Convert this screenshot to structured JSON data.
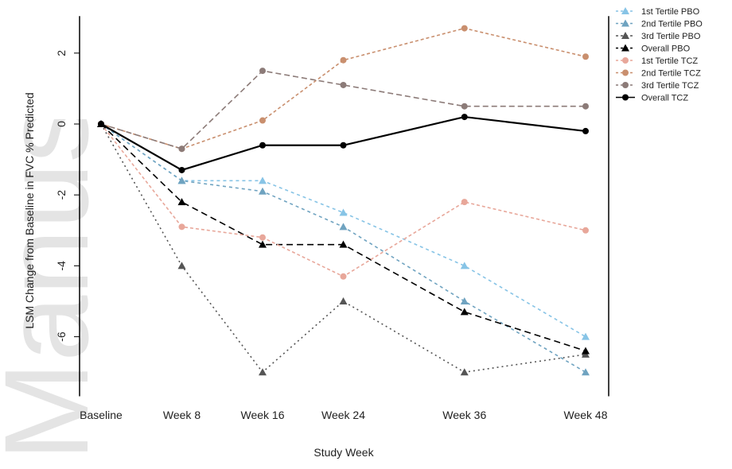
{
  "chart_data": {
    "type": "line",
    "title": "",
    "xlabel": "Study Week",
    "ylabel": "LSM Change from Baseline in FVC % Predicted",
    "categories": [
      "Baseline",
      "Week 8",
      "Week 16",
      "Week 24",
      "Week 36",
      "Week 48"
    ],
    "x_weeks": [
      0,
      8,
      16,
      24,
      36,
      48
    ],
    "yticks": [
      2,
      0,
      -2,
      -4,
      -6
    ],
    "ylim": [
      -7.5,
      3.0
    ],
    "grid": false,
    "legend_position": "right",
    "series": [
      {
        "name": "1st Tertile PBO",
        "values": [
          0,
          -1.6,
          -1.6,
          -2.5,
          -4.0,
          -6.0
        ],
        "color": "#87c4e6",
        "dash": "4 4",
        "marker": "triangle"
      },
      {
        "name": "2nd Tertile PBO",
        "values": [
          0,
          -1.6,
          -1.9,
          -2.9,
          -5.0,
          -7.0
        ],
        "color": "#6fa3c0",
        "dash": "4 4",
        "marker": "triangle"
      },
      {
        "name": "3rd Tertile PBO",
        "values": [
          0,
          -4.0,
          -7.0,
          -5.0,
          -7.0,
          -6.5
        ],
        "color": "#555555",
        "dash": "2 4",
        "marker": "triangle"
      },
      {
        "name": "Overall PBO",
        "values": [
          0,
          -2.2,
          -3.4,
          -3.4,
          -5.3,
          -6.4
        ],
        "color": "#000000",
        "dash": "8 5",
        "marker": "triangle"
      },
      {
        "name": "1st Tertile TCZ",
        "values": [
          0,
          -2.9,
          -3.2,
          -4.3,
          -2.2,
          -3.0
        ],
        "color": "#e8a79a",
        "dash": "4 3",
        "marker": "circle"
      },
      {
        "name": "2nd Tertile TCZ",
        "values": [
          0,
          -0.7,
          0.1,
          1.8,
          2.7,
          1.9
        ],
        "color": "#c98f6e",
        "dash": "4 3",
        "marker": "circle"
      },
      {
        "name": "3rd Tertile TCZ",
        "values": [
          0,
          -0.7,
          1.5,
          1.1,
          0.5,
          0.5
        ],
        "color": "#8c7b78",
        "dash": "7 4",
        "marker": "circle"
      },
      {
        "name": "Overall TCZ",
        "values": [
          0,
          -1.3,
          -0.6,
          -0.6,
          0.2,
          -0.2
        ],
        "color": "#000000",
        "dash": "",
        "marker": "circle"
      }
    ]
  },
  "watermark": {
    "text": "Manuscript",
    "color": "#e4e4e4"
  }
}
